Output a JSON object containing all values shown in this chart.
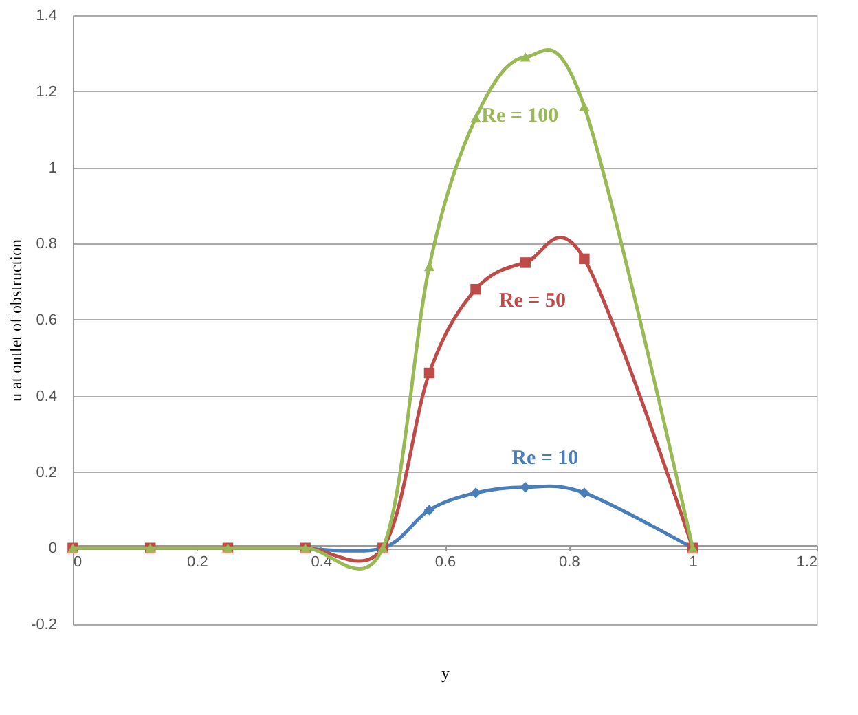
{
  "chart_data": {
    "type": "line",
    "xlabel": "y",
    "ylabel": "u at outlet of obstruction",
    "xlim": [
      0,
      1.2
    ],
    "ylim": [
      -0.2,
      1.4
    ],
    "xticks": [
      0,
      0.2,
      0.4,
      0.6,
      0.8,
      1,
      1.2
    ],
    "yticks": [
      -0.2,
      0,
      0.2,
      0.4,
      0.6,
      0.8,
      1,
      1.2,
      1.4
    ],
    "grid": "y",
    "line_style": "solid",
    "x": [
      0,
      0.125,
      0.25,
      0.375,
      0.5,
      0.575,
      0.65,
      0.73,
      0.825,
      1
    ],
    "series": [
      {
        "name": "Re = 10",
        "color": "#4a7ebb",
        "marker": "diamond",
        "values": [
          null,
          null,
          null,
          0,
          0,
          0.1,
          0.145,
          0.16,
          0.145,
          0
        ]
      },
      {
        "name": "Re = 50",
        "color": "#be4b48",
        "marker": "square",
        "values": [
          0,
          0,
          0,
          0,
          0,
          0.46,
          0.68,
          0.75,
          0.76,
          0
        ]
      },
      {
        "name": "Re = 100",
        "color": "#98b954",
        "marker": "triangle",
        "values": [
          0,
          0,
          0,
          0,
          0,
          0.74,
          1.13,
          1.29,
          1.16,
          0
        ]
      }
    ]
  }
}
